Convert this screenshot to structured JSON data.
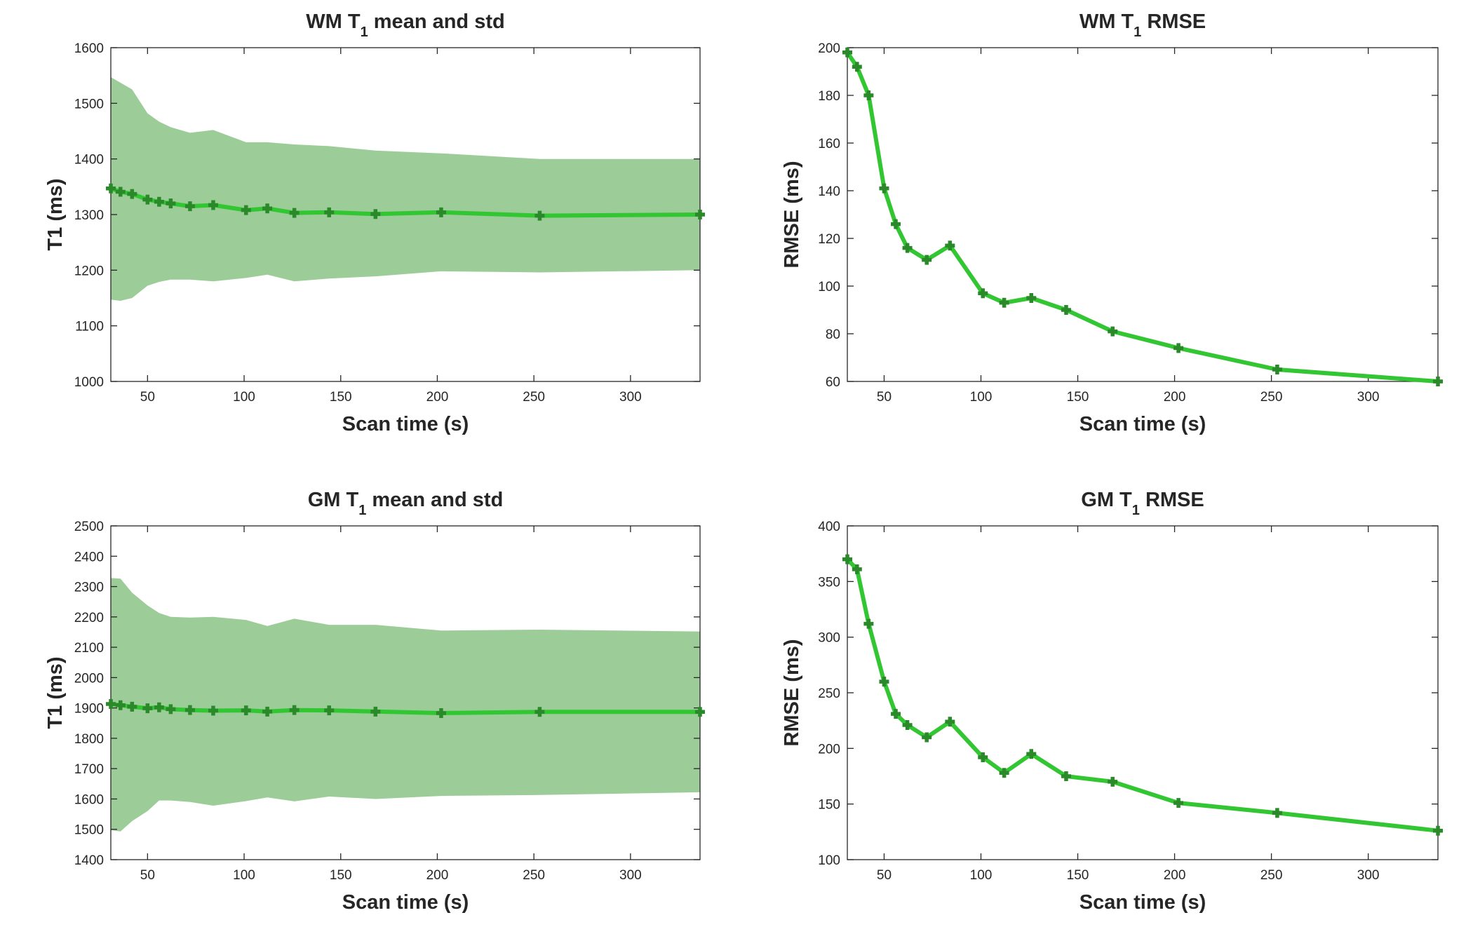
{
  "colors": {
    "band": "#9ccd98",
    "line": "#33c633",
    "marker": "#2a8a2a",
    "axis": "#262626"
  },
  "chart_data": [
    {
      "type": "area",
      "title": "WM T",
      "title_sub": "1",
      "title_rest": " mean and std",
      "xlabel": "Scan time (s)",
      "ylabel": "T1 (ms)",
      "xlim": [
        31,
        336
      ],
      "ylim": [
        1000,
        1600
      ],
      "xticks": [
        50,
        100,
        150,
        200,
        250,
        300
      ],
      "yticks": [
        1000,
        1100,
        1200,
        1300,
        1400,
        1500,
        1600
      ],
      "x": [
        31,
        36,
        42,
        50,
        56,
        62,
        72,
        84,
        101,
        112,
        126,
        144,
        168,
        202,
        253,
        336
      ],
      "mean": [
        1347,
        1341,
        1337,
        1327,
        1323,
        1320,
        1315,
        1317,
        1308,
        1311,
        1303,
        1304,
        1301,
        1304,
        1298,
        1300
      ],
      "upper": [
        1547,
        1537,
        1525,
        1482,
        1467,
        1457,
        1447,
        1452,
        1430,
        1430,
        1426,
        1423,
        1415,
        1410,
        1400,
        1400
      ],
      "lower": [
        1147,
        1145,
        1150,
        1172,
        1179,
        1183,
        1183,
        1180,
        1186,
        1192,
        1180,
        1185,
        1189,
        1198,
        1196,
        1200
      ]
    },
    {
      "type": "line",
      "title": "WM T",
      "title_sub": "1",
      "title_rest": " RMSE",
      "xlabel": "Scan time (s)",
      "ylabel": "RMSE (ms)",
      "xlim": [
        31,
        336
      ],
      "ylim": [
        60,
        200
      ],
      "xticks": [
        50,
        100,
        150,
        200,
        250,
        300
      ],
      "yticks": [
        60,
        80,
        100,
        120,
        140,
        160,
        180,
        200
      ],
      "x": [
        31,
        36,
        42,
        50,
        56,
        62,
        72,
        84,
        101,
        112,
        126,
        144,
        168,
        202,
        253,
        336
      ],
      "values": [
        198,
        192,
        180,
        141,
        126,
        116,
        111,
        117,
        97,
        93,
        95,
        90,
        81,
        74,
        65,
        60
      ]
    },
    {
      "type": "area",
      "title": "GM T",
      "title_sub": "1",
      "title_rest": " mean and std",
      "xlabel": "Scan time (s)",
      "ylabel": "T1 (ms)",
      "xlim": [
        31,
        336
      ],
      "ylim": [
        1400,
        2500
      ],
      "xticks": [
        50,
        100,
        150,
        200,
        250,
        300
      ],
      "yticks": [
        1400,
        1500,
        1600,
        1700,
        1800,
        1900,
        2000,
        2100,
        2200,
        2300,
        2400,
        2500
      ],
      "x": [
        31,
        36,
        42,
        50,
        56,
        62,
        72,
        84,
        101,
        112,
        126,
        144,
        168,
        202,
        253,
        336
      ],
      "mean": [
        1913,
        1909,
        1904,
        1899,
        1902,
        1896,
        1893,
        1891,
        1892,
        1888,
        1893,
        1892,
        1888,
        1883,
        1887,
        1887
      ],
      "upper": [
        2328,
        2326,
        2280,
        2238,
        2213,
        2200,
        2198,
        2200,
        2190,
        2170,
        2194,
        2174,
        2174,
        2155,
        2158,
        2152
      ],
      "lower": [
        1497,
        1493,
        1527,
        1560,
        1595,
        1595,
        1590,
        1578,
        1593,
        1605,
        1592,
        1608,
        1600,
        1610,
        1613,
        1622
      ]
    },
    {
      "type": "line",
      "title": "GM T",
      "title_sub": "1",
      "title_rest": " RMSE",
      "xlabel": "Scan time (s)",
      "ylabel": "RMSE (ms)",
      "xlim": [
        31,
        336
      ],
      "ylim": [
        100,
        400
      ],
      "xticks": [
        50,
        100,
        150,
        200,
        250,
        300
      ],
      "yticks": [
        100,
        150,
        200,
        250,
        300,
        350,
        400
      ],
      "x": [
        31,
        36,
        42,
        50,
        56,
        62,
        72,
        84,
        101,
        112,
        126,
        144,
        168,
        202,
        253,
        336
      ],
      "values": [
        370,
        361,
        312,
        260,
        231,
        221,
        210,
        224,
        192,
        178,
        195,
        175,
        170,
        151,
        142,
        126
      ]
    }
  ]
}
